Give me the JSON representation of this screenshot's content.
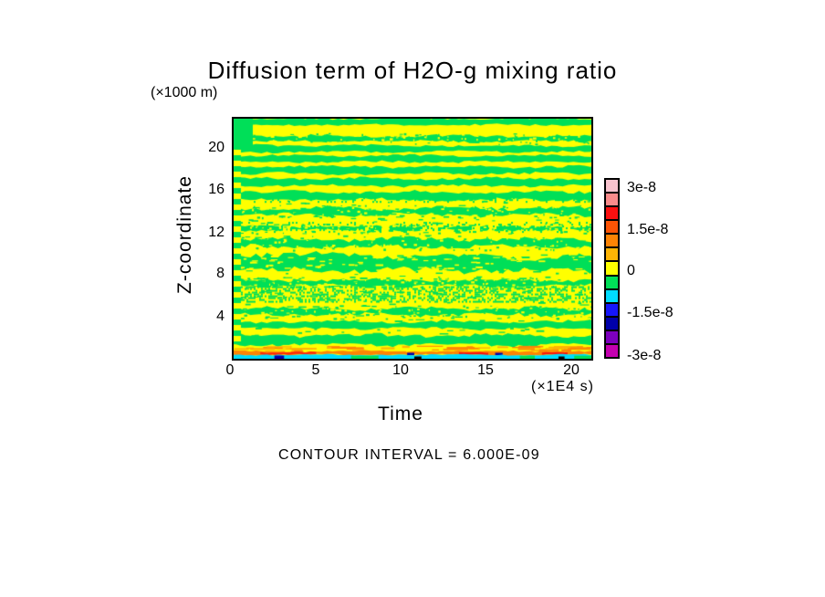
{
  "chart_data": {
    "type": "heatmap",
    "title": "Diffusion term of H2O-g mixing ratio",
    "xlabel": "Time",
    "ylabel": "Z-coordinate",
    "x_unit_label": "(×1E4 s)",
    "y_unit_label": "(×1000 m)",
    "x_ticks": [
      "0",
      "5",
      "10",
      "15",
      "20"
    ],
    "y_ticks": [
      "20",
      "16",
      "12",
      "8",
      "4"
    ],
    "x_range": [
      0,
      21.1
    ],
    "y_range": [
      0,
      22.7
    ],
    "contour_note": "CONTOUR INTERVAL = 6.000E-09",
    "colorbar": {
      "labels": [
        "3e-8",
        "1.5e-8",
        "0",
        "-1.5e-8",
        "-3e-8"
      ],
      "label_values": [
        3e-08,
        1.5e-08,
        0,
        -1.5e-08,
        -3e-08
      ],
      "colors_top_to_bottom": [
        "#f8c3ce",
        "#f98b8b",
        "#fb1010",
        "#fc5405",
        "#fd8405",
        "#fdb405",
        "#ffff00",
        "#00df58",
        "#00dcff",
        "#1616fb",
        "#0000aa",
        "#7d00be",
        "#c400b0"
      ]
    },
    "field": {
      "base_color": "#ffff00",
      "band_color": "#00df58",
      "green_bands": [
        {
          "y0": 0.0,
          "y1": 0.026,
          "amp": 1.0,
          "speckle": false
        },
        {
          "y0": 0.072,
          "y1": 0.094,
          "amp": 1.5,
          "speckle": true
        },
        {
          "y0": 0.112,
          "y1": 0.138,
          "amp": 1.2,
          "speckle": false
        },
        {
          "y0": 0.154,
          "y1": 0.18,
          "amp": 1.2,
          "speckle": false
        },
        {
          "y0": 0.2,
          "y1": 0.229,
          "amp": 1.4,
          "speckle": false
        },
        {
          "y0": 0.249,
          "y1": 0.279,
          "amp": 1.4,
          "speckle": false
        },
        {
          "y0": 0.306,
          "y1": 0.337,
          "amp": 1.6,
          "speckle": false
        },
        {
          "y0": 0.373,
          "y1": 0.401,
          "amp": 2.0,
          "speckle": true
        },
        {
          "y0": 0.449,
          "y1": 0.464,
          "amp": 1.2,
          "speckle": true,
          "gappy": true
        },
        {
          "y0": 0.502,
          "y1": 0.533,
          "amp": 2.2,
          "speckle": true
        },
        {
          "y0": 0.561,
          "y1": 0.632,
          "amp": 3.0,
          "speckle": false,
          "slope": 5
        },
        {
          "y0": 0.673,
          "y1": 0.696,
          "amp": 1.6,
          "speckle": true
        },
        {
          "y0": 0.791,
          "y1": 0.817,
          "amp": 2.0,
          "speckle": true
        },
        {
          "y0": 0.845,
          "y1": 0.874,
          "amp": 1.6,
          "speckle": false
        },
        {
          "y0": 0.903,
          "y1": 0.942,
          "amp": 1.8,
          "speckle": false
        }
      ],
      "dither_zones": [
        {
          "y0": 0.698,
          "y1": 0.76,
          "density": 0.42
        },
        {
          "y0": 0.32,
          "y1": 0.345,
          "density": 0.16
        },
        {
          "y0": 0.43,
          "y1": 0.47,
          "density": 0.14
        }
      ],
      "bottom": {
        "amber_zone": {
          "y0": 0.944,
          "y1": 0.97,
          "colors": [
            "#fdb405",
            "#fd8405"
          ],
          "dashes": 55
        },
        "orange_line": {
          "y0": 0.9695,
          "y1": 0.9835,
          "color": "#fd8405",
          "red_segments": [
            [
              0.075,
              0.23
            ],
            [
              0.63,
              0.71
            ],
            [
              0.862,
              0.932
            ]
          ],
          "red_color": "#fb0f0f",
          "navy_specks": [
            [
              0.485,
              0.505
            ],
            [
              0.731,
              0.752
            ]
          ],
          "navy_color": "#0000aa"
        },
        "cyan_band": {
          "y0": 0.9835,
          "y1": 1.0,
          "color": "#00dcff",
          "green_gaps": [
            [
              0.328,
              0.405
            ],
            [
              0.8,
              0.842
            ],
            [
              0.952,
              1.0
            ]
          ],
          "navy_specks": [
            [
              0.114,
              0.141
            ]
          ],
          "black_fragments": [
            [
              0.505,
              0.525
            ],
            [
              0.908,
              0.925
            ]
          ]
        }
      },
      "left_edge": {
        "strip_w": 8,
        "block_w": 21,
        "block_h": 30,
        "stripe_h": 6,
        "stripe_step": 12
      }
    }
  }
}
